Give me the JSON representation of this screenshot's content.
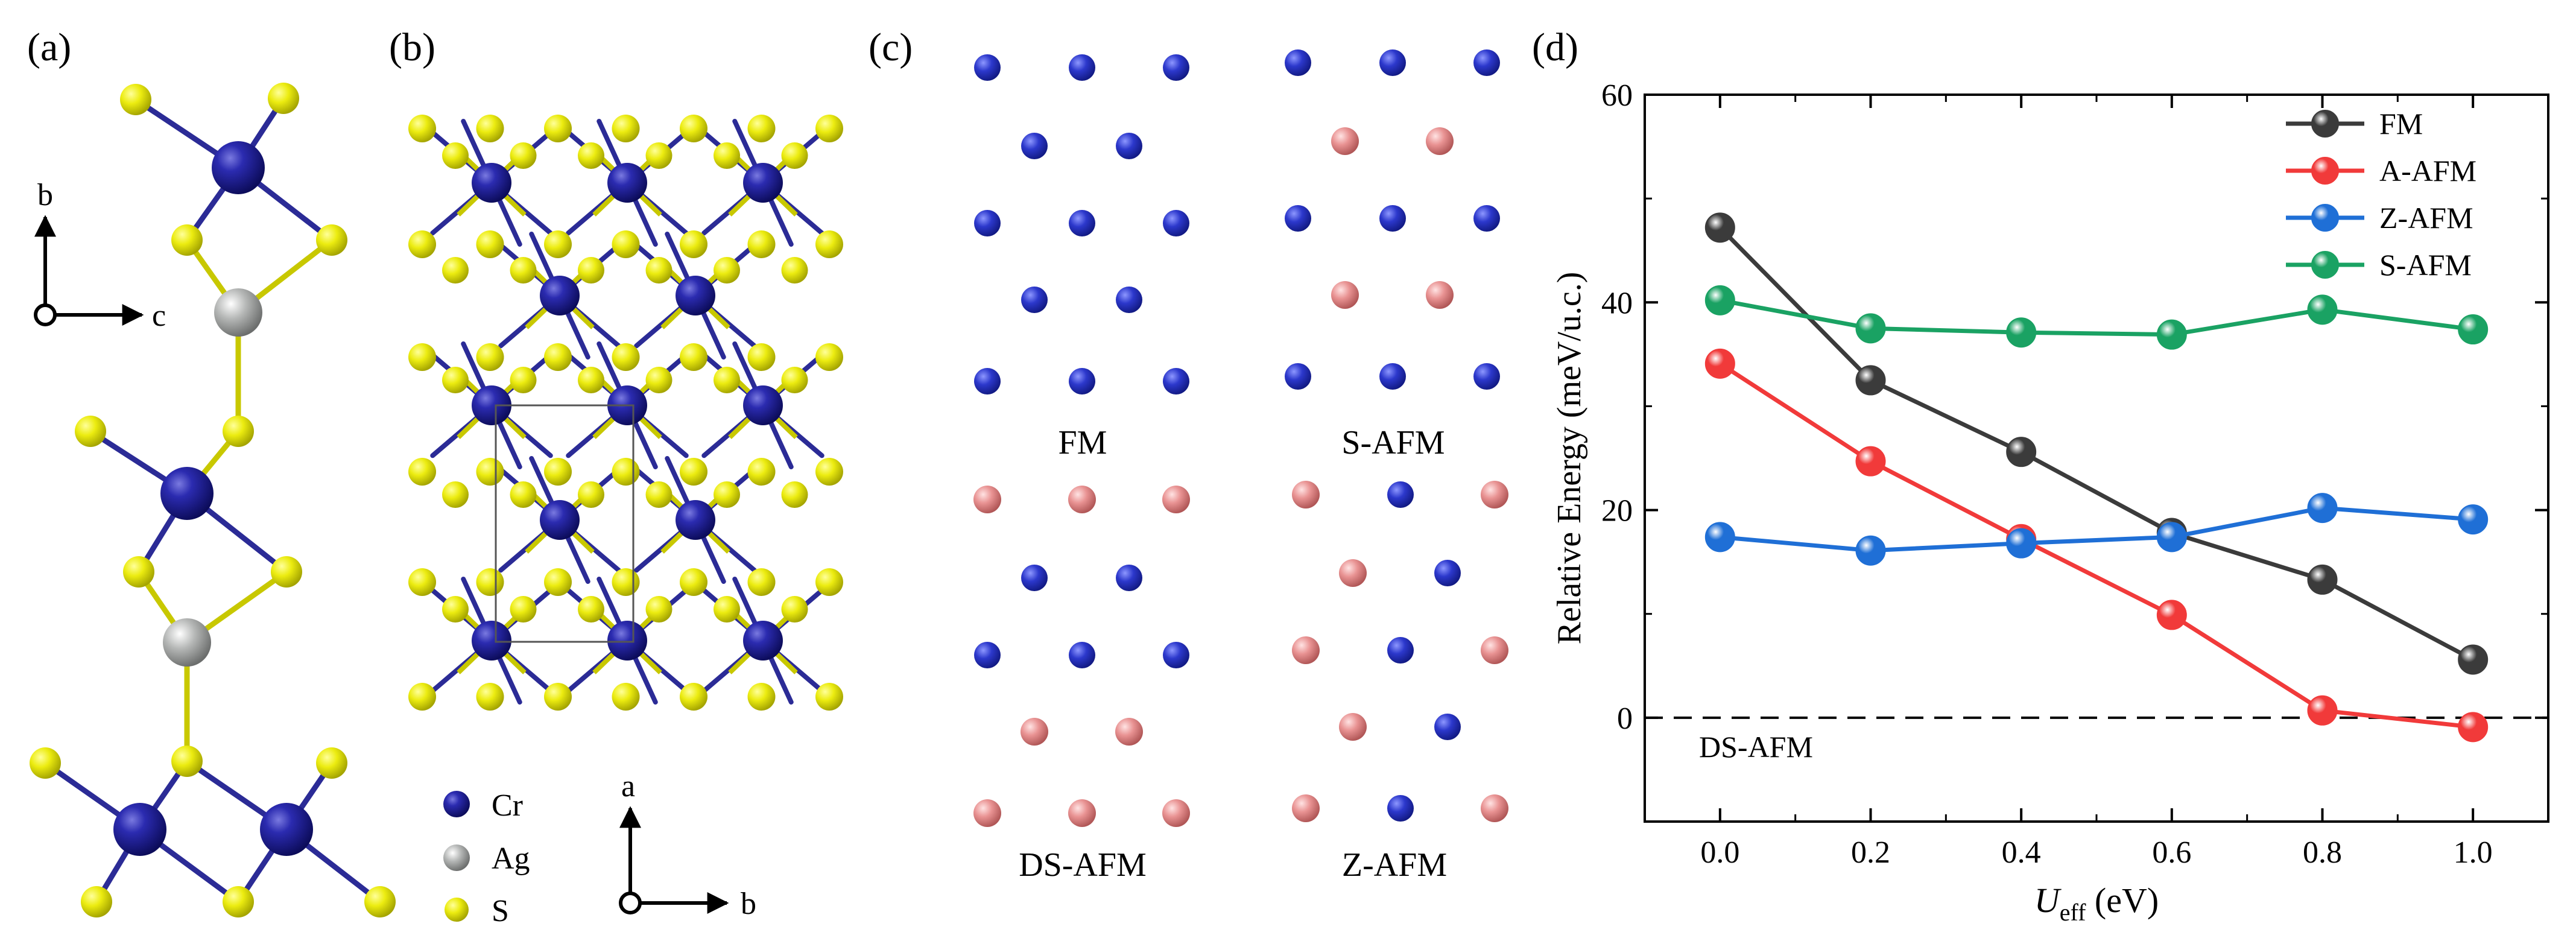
{
  "panels": {
    "a": {
      "label": "(a)",
      "axes": {
        "vertical": "b",
        "horizontal": "c"
      }
    },
    "b": {
      "label": "(b)",
      "legend": [
        {
          "symbol": "Cr",
          "color": "#1c1c8e"
        },
        {
          "symbol": "Ag",
          "color": "#a8aaa9"
        },
        {
          "symbol": "S",
          "color": "#e6e600"
        }
      ],
      "axes": {
        "vertical": "a",
        "horizontal": "b"
      }
    },
    "c": {
      "label": "(c)",
      "configs": [
        "FM",
        "S-AFM",
        "DS-AFM",
        "Z-AFM"
      ],
      "spin_up_color": "#2a35c6",
      "spin_down_color": "#e48a8a"
    },
    "d": {
      "label": "(d)"
    }
  },
  "chart_data": {
    "type": "line",
    "xlabel_main": "U",
    "xlabel_sub": "eff",
    "xlabel_unit": "(eV)",
    "ylabel": "Relative Energy (meV/u.c.)",
    "x": [
      0.0,
      0.2,
      0.4,
      0.6,
      0.8,
      1.0
    ],
    "xticks": [
      "0.0",
      "0.2",
      "0.4",
      "0.6",
      "0.8",
      "1.0"
    ],
    "yticks": [
      "0",
      "20",
      "40",
      "60"
    ],
    "xlim": [
      -0.1,
      1.1
    ],
    "ylim": [
      -10,
      60
    ],
    "reference": {
      "label": "DS-AFM",
      "y": 0
    },
    "legend_position": "top-right",
    "series": [
      {
        "name": "FM",
        "color": "#3b3b3b",
        "values": [
          47.2,
          32.5,
          25.6,
          17.8,
          13.3,
          5.6
        ]
      },
      {
        "name": "A-AFM",
        "color": "#f13a3a",
        "values": [
          34.1,
          24.7,
          17.2,
          9.9,
          0.7,
          -0.9
        ]
      },
      {
        "name": "Z-AFM",
        "color": "#1f6fd6",
        "values": [
          17.4,
          16.1,
          16.8,
          17.4,
          20.2,
          19.1
        ]
      },
      {
        "name": "S-AFM",
        "color": "#1aa263",
        "values": [
          40.2,
          37.5,
          37.1,
          36.9,
          39.3,
          37.4
        ]
      }
    ]
  }
}
